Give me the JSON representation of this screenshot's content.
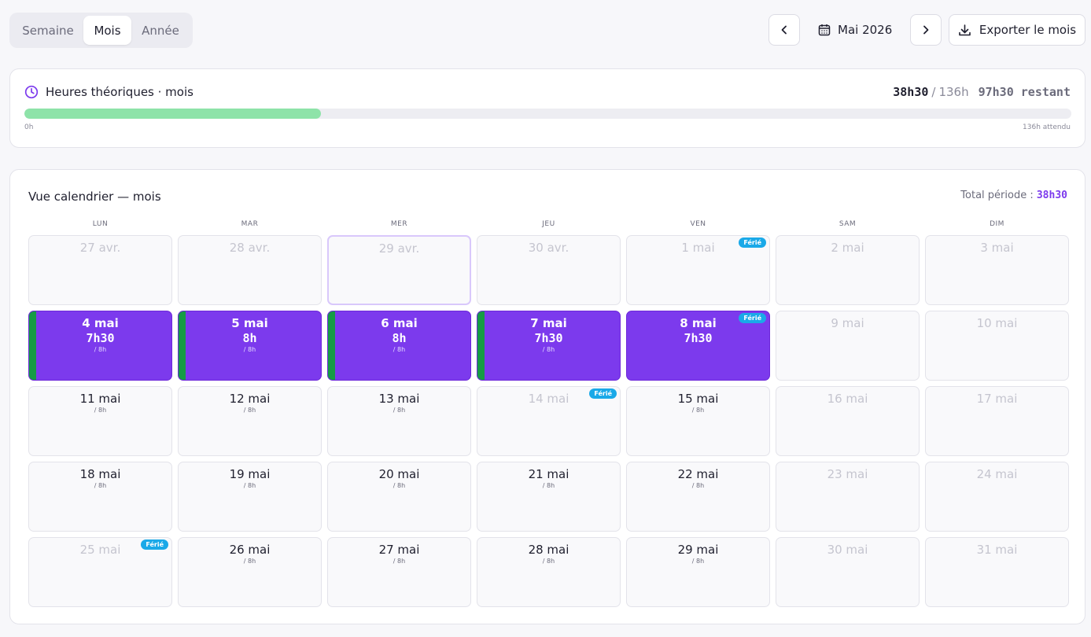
{
  "view_switch": {
    "options": [
      "Semaine",
      "Mois",
      "Année"
    ],
    "active": "Mois"
  },
  "period": {
    "label": "Mai 2026"
  },
  "export_label": "Exporter le mois",
  "icons": {
    "prev": "chevron-left-icon",
    "next": "chevron-right-icon",
    "calendar": "calendar-icon",
    "download": "download-icon",
    "clock": "clock-icon"
  },
  "hours": {
    "title": "Heures théoriques · mois",
    "done": "38h30",
    "separator": "/",
    "total": "136h",
    "remaining": "97h30 restant",
    "progress_fraction": 0.283,
    "axis_min": "0h",
    "axis_max": "136h attendu"
  },
  "calendar": {
    "title": "Vue calendrier — mois",
    "total_label": "Total période : ",
    "total_value": "38h30",
    "weekdays": [
      "LUN",
      "MAR",
      "MER",
      "JEU",
      "VEN",
      "SAM",
      "DIM"
    ],
    "holiday_label": "Férié",
    "days": [
      {
        "date": "27 avr.",
        "muted": true
      },
      {
        "date": "28 avr.",
        "muted": true
      },
      {
        "date": "29 avr.",
        "muted": true,
        "today": true
      },
      {
        "date": "30 avr.",
        "muted": true
      },
      {
        "date": "1 mai",
        "muted": true,
        "holiday": true
      },
      {
        "date": "2 mai",
        "muted": true
      },
      {
        "date": "3 mai",
        "muted": true
      },
      {
        "date": "4 mai",
        "hours": "7h30",
        "target": "/ 8h",
        "logged": true,
        "strip": true
      },
      {
        "date": "5 mai",
        "hours": "8h",
        "target": "/ 8h",
        "logged": true,
        "strip": true
      },
      {
        "date": "6 mai",
        "hours": "8h",
        "target": "/ 8h",
        "logged": true,
        "strip": true
      },
      {
        "date": "7 mai",
        "hours": "7h30",
        "target": "/ 8h",
        "logged": true,
        "strip": true
      },
      {
        "date": "8 mai",
        "hours": "7h30",
        "logged": true,
        "holiday": true
      },
      {
        "date": "9 mai",
        "muted": true
      },
      {
        "date": "10 mai",
        "muted": true
      },
      {
        "date": "11 mai",
        "target": "/ 8h"
      },
      {
        "date": "12 mai",
        "target": "/ 8h"
      },
      {
        "date": "13 mai",
        "target": "/ 8h"
      },
      {
        "date": "14 mai",
        "muted": true,
        "holiday": true
      },
      {
        "date": "15 mai",
        "target": "/ 8h"
      },
      {
        "date": "16 mai",
        "muted": true
      },
      {
        "date": "17 mai",
        "muted": true
      },
      {
        "date": "18 mai",
        "target": "/ 8h"
      },
      {
        "date": "19 mai",
        "target": "/ 8h"
      },
      {
        "date": "20 mai",
        "target": "/ 8h"
      },
      {
        "date": "21 mai",
        "target": "/ 8h"
      },
      {
        "date": "22 mai",
        "target": "/ 8h"
      },
      {
        "date": "23 mai",
        "muted": true
      },
      {
        "date": "24 mai",
        "muted": true
      },
      {
        "date": "25 mai",
        "muted": true,
        "holiday": true
      },
      {
        "date": "26 mai",
        "target": "/ 8h"
      },
      {
        "date": "27 mai",
        "target": "/ 8h"
      },
      {
        "date": "28 mai",
        "target": "/ 8h"
      },
      {
        "date": "29 mai",
        "target": "/ 8h"
      },
      {
        "date": "30 mai",
        "muted": true
      },
      {
        "date": "31 mai",
        "muted": true
      }
    ]
  },
  "colors": {
    "accent": "#7c3aed",
    "progress": "#8ee3a9",
    "worked_strip": "#169b45",
    "holiday_badge": "#1aa9e8"
  }
}
